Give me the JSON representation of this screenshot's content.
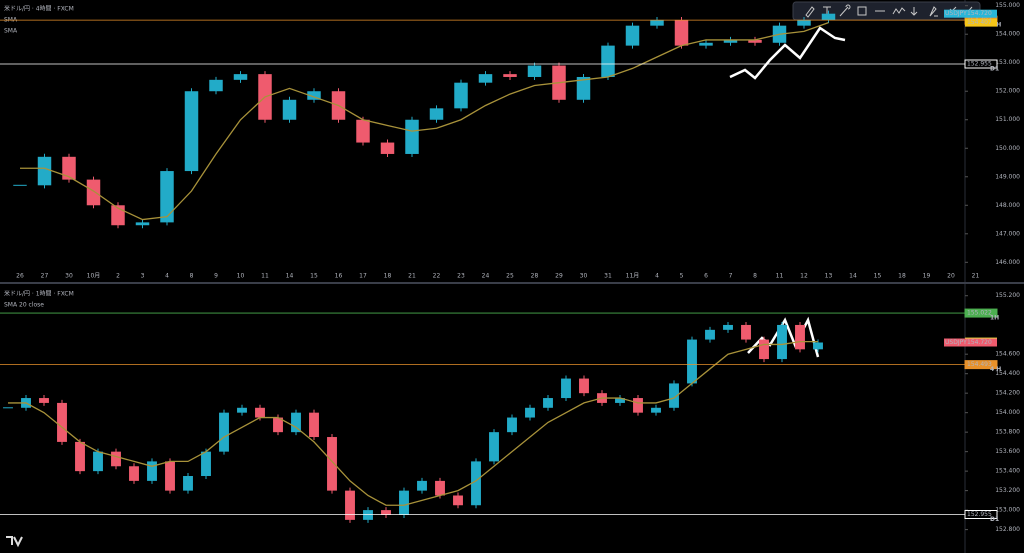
{
  "chart_data": [
    {
      "type": "candlestick",
      "title": "米ドル/円 · 4時間 · FXCM",
      "indicators": [
        "SMA",
        "SMA"
      ],
      "categories": [
        "26",
        "27",
        "30",
        "10月",
        "2",
        "3",
        "4",
        "8",
        "9",
        "10",
        "11",
        "14",
        "15",
        "16",
        "17",
        "18",
        "21",
        "22",
        "23",
        "24",
        "25",
        "28",
        "29",
        "30",
        "31",
        "11月",
        "4",
        "5",
        "6",
        "7",
        "8",
        "11",
        "12",
        "13",
        "14",
        "15",
        "18",
        "19",
        "20",
        "21"
      ],
      "series": [
        {
          "name": "USDJPY",
          "values": [
            148.7,
            149.7,
            148.9,
            148.0,
            147.3,
            147.4,
            149.2,
            152.0,
            152.4,
            152.6,
            151.0,
            151.7,
            152.0,
            151.0,
            150.2,
            149.8,
            151.0,
            151.4,
            152.3,
            152.6,
            152.5,
            152.9,
            151.7,
            152.5,
            153.6,
            154.3,
            154.5,
            153.6,
            153.7,
            153.8,
            153.7,
            154.3,
            154.5,
            154.72,
            null,
            null,
            null,
            null,
            null,
            null
          ],
          "up_color": "#22abc8",
          "down_color": "#ef5b6e"
        },
        {
          "name": "SMA",
          "color": "#a8923a",
          "values": [
            149.3,
            149.3,
            149.0,
            148.5,
            147.9,
            147.5,
            147.6,
            148.5,
            149.8,
            151.0,
            151.8,
            152.1,
            151.8,
            151.5,
            151.0,
            150.8,
            150.6,
            150.7,
            151.0,
            151.5,
            151.9,
            152.2,
            152.3,
            152.4,
            152.5,
            152.8,
            153.2,
            153.6,
            153.8,
            153.8,
            153.8,
            154.0,
            154.1,
            154.407,
            null,
            null,
            null,
            null,
            null,
            null
          ]
        }
      ],
      "ylim": [
        145.8,
        155.2
      ],
      "yticks": [
        {
          "value": 155,
          "label": "155.000"
        },
        {
          "value": 154,
          "label": "154.000"
        },
        {
          "value": 153,
          "label": "153.000"
        },
        {
          "value": 152,
          "label": "152.000"
        },
        {
          "value": 151,
          "label": "151.000"
        },
        {
          "value": 150,
          "label": "150.000"
        },
        {
          "value": 149,
          "label": "149.000"
        },
        {
          "value": 148,
          "label": "148.000"
        },
        {
          "value": 147,
          "label": "147.000"
        },
        {
          "value": 146,
          "label": "146.000"
        }
      ],
      "price_lines": [
        {
          "value": 154.493,
          "color": "#e8912a",
          "tag": "4 H"
        },
        {
          "value": 152.955,
          "color": "#ffffff",
          "tag": "D1"
        }
      ],
      "price_tags": [
        {
          "symbol": "USDJPY",
          "value": 154.72,
          "label": "154.720",
          "color": "#29b6d8"
        },
        {
          "value": 154.407,
          "color": "#f5c518"
        }
      ]
    },
    {
      "type": "candlestick",
      "title": "米ドル/円 · 1時間 · FXCM",
      "indicators": [
        "SMA 20 close"
      ],
      "series": [
        {
          "name": "USDJPY",
          "values": [
            154.05,
            154.15,
            154.1,
            153.7,
            153.4,
            153.6,
            153.45,
            153.3,
            153.5,
            153.2,
            153.35,
            153.6,
            154.0,
            154.05,
            153.95,
            153.8,
            154.0,
            153.75,
            153.2,
            152.9,
            153.0,
            152.95,
            153.2,
            153.3,
            153.15,
            153.05,
            153.5,
            153.8,
            153.95,
            154.05,
            154.15,
            154.35,
            154.2,
            154.1,
            154.15,
            154.0,
            154.05,
            154.3,
            154.75,
            154.85,
            154.9,
            154.75,
            154.55,
            154.9,
            154.65,
            154.72
          ],
          "up_color": "#22abc8",
          "down_color": "#ef5b6e"
        },
        {
          "name": "SMA 20 close",
          "color": "#a8923a",
          "values": [
            154.1,
            154.1,
            154.0,
            153.85,
            153.7,
            153.6,
            153.55,
            153.5,
            153.45,
            153.5,
            153.5,
            153.6,
            153.75,
            153.85,
            153.95,
            153.95,
            153.85,
            153.7,
            153.5,
            153.3,
            153.15,
            153.05,
            153.05,
            153.1,
            153.15,
            153.2,
            153.3,
            153.45,
            153.6,
            153.75,
            153.9,
            154.0,
            154.1,
            154.15,
            154.15,
            154.1,
            154.1,
            154.15,
            154.3,
            154.45,
            154.6,
            154.65,
            154.7,
            154.7,
            154.729,
            154.729
          ]
        }
      ],
      "ylim": [
        152.56,
        155.31
      ],
      "yticks": [
        {
          "value": 155.2,
          "label": "155.200"
        },
        {
          "value": 154.6,
          "label": "154.600"
        },
        {
          "value": 154.4,
          "label": "154.400"
        },
        {
          "value": 154.2,
          "label": "154.200"
        },
        {
          "value": 154,
          "label": "154.000"
        },
        {
          "value": 153.8,
          "label": "153.800"
        },
        {
          "value": 153.6,
          "label": "153.600"
        },
        {
          "value": 153.4,
          "label": "153.400"
        },
        {
          "value": 153.2,
          "label": "153.200"
        },
        {
          "value": 153,
          "label": "153.000"
        },
        {
          "value": 152.8,
          "label": "152.800"
        }
      ],
      "price_lines": [
        {
          "value": 155.022,
          "color": "#4caf50",
          "tag": "1H"
        },
        {
          "value": 154.493,
          "color": "#e8912a",
          "tag": "4 H"
        },
        {
          "value": 152.955,
          "color": "#ffffff",
          "tag": "D1"
        }
      ],
      "price_tags": [
        {
          "value": 154.729,
          "color": "#f5e642"
        },
        {
          "symbol": "USDJPY",
          "value": 154.72,
          "label": "154.720",
          "color": "#ef5b6e"
        }
      ]
    }
  ]
}
